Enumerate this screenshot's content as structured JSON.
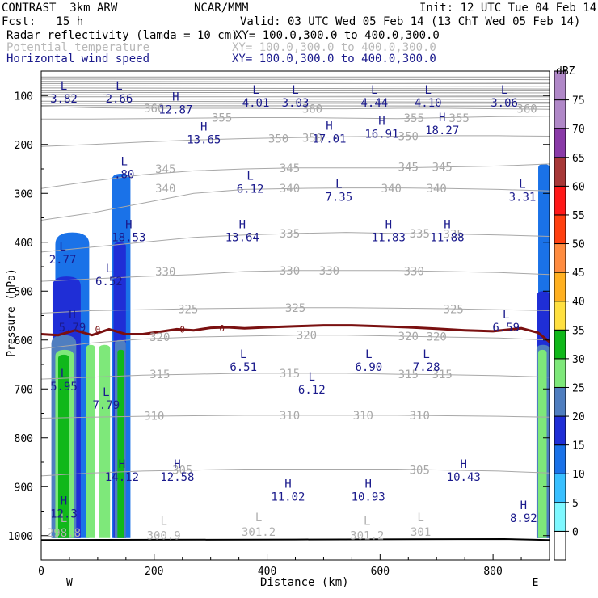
{
  "header": {
    "title_left": "CONTRAST  3km ARW",
    "title_center": "NCAR/MMM",
    "init": "Init: 12 UTC Tue 04 Feb 14",
    "fcst": "Fcst:   15 h",
    "valid": "Valid: 03 UTC Wed 05 Feb 14 (13 ChT Wed 05 Feb 14)",
    "fields": [
      {
        "name": "Radar reflectivity (lamda = 10 cm)",
        "xy": "XY= 100.0,300.0 to 400.0,300.0"
      },
      {
        "name": "Potential temperature",
        "xy": "XY= 100.0,300.0 to 400.0,300.0"
      },
      {
        "name": "Horizontal wind speed",
        "xy": "XY= 100.0,300.0 to 400.0,300.0"
      }
    ]
  },
  "colorbar": {
    "unit": "dBZ",
    "levels": [
      0,
      5,
      10,
      15,
      20,
      25,
      30,
      35,
      40,
      45,
      50,
      55,
      60,
      65,
      70,
      75
    ],
    "colors": [
      "#ffffff",
      "#7ff8ff",
      "#39c0ff",
      "#1a72e8",
      "#1f2ed6",
      "#4f7ec0",
      "#7ee87a",
      "#10b81a",
      "#ffe040",
      "#ffb020",
      "#ff8c40",
      "#ff4010",
      "#ff1818",
      "#a83838",
      "#8a3aa8",
      "#b088c8"
    ]
  },
  "chart_data": {
    "type": "contour-cross-section",
    "xlabel": "Distance (km)",
    "ylabel": "Pressure (hPa)",
    "xlim": [
      0,
      900
    ],
    "ylim": [
      1050,
      50
    ],
    "xticks": [
      0,
      200,
      400,
      600,
      800
    ],
    "yticks": [
      100,
      200,
      300,
      400,
      500,
      600,
      700,
      800,
      900,
      1000
    ],
    "endpoints": {
      "left": "W",
      "right": "E"
    },
    "theta_contours": [
      {
        "label": "360",
        "p": [
          122,
          125,
          126,
          126,
          126,
          127,
          127,
          126,
          126,
          127,
          128
        ],
        "label_positions": [
          [
            200,
            126
          ],
          [
            480,
            127
          ],
          [
            860,
            127
          ]
        ]
      },
      {
        "label": "355",
        "p": [
          148,
          148,
          147,
          146,
          145,
          145,
          146,
          147,
          145,
          143,
          142
        ],
        "label_positions": [
          [
            320,
            145
          ],
          [
            660,
            146
          ],
          [
            740,
            146
          ]
        ]
      },
      {
        "label": "350",
        "p": [
          204,
          200,
          195,
          191,
          188,
          186,
          184,
          183,
          182,
          182,
          183
        ],
        "label_positions": [
          [
            420,
            188
          ],
          [
            480,
            186
          ],
          [
            650,
            183
          ]
        ]
      },
      {
        "label": "345",
        "p": [
          290,
          275,
          262,
          254,
          250,
          248,
          248,
          248,
          246,
          244,
          240
        ],
        "label_positions": [
          [
            220,
            250
          ],
          [
            440,
            248
          ],
          [
            650,
            246
          ],
          [
            710,
            246
          ]
        ]
      },
      {
        "label": "340",
        "p": [
          355,
          340,
          320,
          300,
          292,
          290,
          289,
          289,
          290,
          292,
          295
        ],
        "label_positions": [
          [
            220,
            290
          ],
          [
            440,
            290
          ],
          [
            620,
            290
          ],
          [
            700,
            290
          ]
        ]
      },
      {
        "label": "335",
        "p": [
          420,
          410,
          400,
          390,
          385,
          382,
          380,
          382,
          383,
          385,
          388
        ],
        "label_positions": [
          [
            440,
            382
          ],
          [
            670,
            382
          ],
          [
            730,
            383
          ]
        ]
      },
      {
        "label": "330",
        "p": [
          480,
          475,
          470,
          466,
          460,
          458,
          458,
          458,
          460,
          462,
          466
        ],
        "label_positions": [
          [
            220,
            460
          ],
          [
            440,
            458
          ],
          [
            510,
            458
          ],
          [
            660,
            459
          ]
        ]
      },
      {
        "label": "325",
        "p": [
          545,
          540,
          538,
          536,
          535,
          534,
          534,
          535,
          536,
          538,
          540
        ],
        "label_positions": [
          [
            260,
            537
          ],
          [
            450,
            534
          ],
          [
            730,
            537
          ]
        ]
      },
      {
        "label": "320",
        "p": [
          618,
          606,
          598,
          594,
          592,
          590,
          590,
          592,
          594,
          596,
          600
        ],
        "label_positions": [
          [
            210,
            594
          ],
          [
            470,
            590
          ],
          [
            650,
            592
          ],
          [
            700,
            593
          ]
        ]
      },
      {
        "label": "315",
        "p": [
          680,
          676,
          672,
          670,
          668,
          668,
          668,
          670,
          671,
          673,
          676
        ],
        "label_positions": [
          [
            210,
            670
          ],
          [
            440,
            668
          ],
          [
            650,
            670
          ],
          [
            710,
            670
          ]
        ]
      },
      {
        "label": "310",
        "p": [
          760,
          758,
          756,
          755,
          754,
          754,
          754,
          754,
          755,
          756,
          758
        ],
        "label_positions": [
          [
            200,
            755
          ],
          [
            440,
            754
          ],
          [
            570,
            754
          ],
          [
            670,
            754
          ]
        ]
      },
      {
        "label": "305",
        "p": [
          878,
          872,
          868,
          866,
          864,
          864,
          864,
          864,
          866,
          868,
          872
        ],
        "label_positions": [
          [
            250,
            866
          ],
          [
            670,
            866
          ]
        ]
      }
    ],
    "freezing_line": {
      "label": "0",
      "x": [
        0,
        30,
        60,
        90,
        120,
        150,
        180,
        210,
        240,
        270,
        300,
        330,
        360,
        400,
        450,
        500,
        550,
        600,
        650,
        700,
        750,
        800,
        850,
        880,
        900
      ],
      "p": [
        588,
        590,
        580,
        590,
        578,
        588,
        588,
        583,
        578,
        580,
        575,
        574,
        576,
        574,
        572,
        570,
        570,
        572,
        574,
        577,
        580,
        582,
        576,
        585,
        604
      ]
    },
    "surface": {
      "x": [
        0,
        450,
        820,
        900
      ],
      "p": [
        1009,
        1008,
        1007,
        1009
      ]
    },
    "reflectivity_regions": [
      {
        "x0": 25,
        "x1": 85,
        "ptop": 380,
        "dbz": 15
      },
      {
        "x0": 20,
        "x1": 70,
        "ptop": 470,
        "dbz": 20
      },
      {
        "x0": 18,
        "x1": 62,
        "ptop": 590,
        "dbz": 25
      },
      {
        "x0": 25,
        "x1": 58,
        "ptop": 620,
        "dbz": 30
      },
      {
        "x0": 30,
        "x1": 50,
        "ptop": 630,
        "dbz": 35
      },
      {
        "x0": 80,
        "x1": 95,
        "ptop": 610,
        "dbz": 30
      },
      {
        "x0": 102,
        "x1": 122,
        "ptop": 610,
        "dbz": 30
      },
      {
        "x0": 125,
        "x1": 158,
        "ptop": 260,
        "dbz": 15
      },
      {
        "x0": 128,
        "x1": 150,
        "ptop": 400,
        "dbz": 20
      },
      {
        "x0": 130,
        "x1": 150,
        "ptop": 600,
        "dbz": 25
      },
      {
        "x0": 135,
        "x1": 147,
        "ptop": 620,
        "dbz": 35
      },
      {
        "x0": 880,
        "x1": 900,
        "ptop": 240,
        "dbz": 15
      },
      {
        "x0": 878,
        "x1": 900,
        "ptop": 500,
        "dbz": 20
      },
      {
        "x0": 877,
        "x1": 900,
        "ptop": 610,
        "dbz": 25
      },
      {
        "x0": 880,
        "x1": 895,
        "ptop": 620,
        "dbz": 30
      }
    ],
    "wind_labels": [
      {
        "kind": "L",
        "value": "3.82",
        "x": 40,
        "p": 108
      },
      {
        "kind": "L",
        "value": "2.66",
        "x": 138,
        "p": 108
      },
      {
        "kind": "H",
        "value": "12.87",
        "x": 238,
        "p": 130
      },
      {
        "kind": "L",
        "value": "4.01",
        "x": 380,
        "p": 116
      },
      {
        "kind": "L",
        "value": "3.03",
        "x": 450,
        "p": 116
      },
      {
        "kind": "L",
        "value": "4.44",
        "x": 590,
        "p": 116
      },
      {
        "kind": "L",
        "value": "4.10",
        "x": 685,
        "p": 116
      },
      {
        "kind": "L",
        "value": "3.06",
        "x": 820,
        "p": 116
      },
      {
        "kind": "H",
        "value": "13.65",
        "x": 288,
        "p": 191
      },
      {
        "kind": "H",
        "value": "17.01",
        "x": 510,
        "p": 190
      },
      {
        "kind": "H",
        "value": "16.91",
        "x": 603,
        "p": 180
      },
      {
        "kind": "H",
        "value": "18.27",
        "x": 710,
        "p": 172
      },
      {
        "kind": "L",
        "value": ".80",
        "x": 147,
        "p": 262
      },
      {
        "kind": "L",
        "value": "6.12",
        "x": 370,
        "p": 292
      },
      {
        "kind": "L",
        "value": "7.35",
        "x": 527,
        "p": 309
      },
      {
        "kind": "L",
        "value": "3.31",
        "x": 852,
        "p": 309
      },
      {
        "kind": "H",
        "value": "18.53",
        "x": 155,
        "p": 391
      },
      {
        "kind": "H",
        "value": "13.64",
        "x": 356,
        "p": 391
      },
      {
        "kind": "H",
        "value": "11.83",
        "x": 615,
        "p": 391
      },
      {
        "kind": "H",
        "value": "11.88",
        "x": 719,
        "p": 391
      },
      {
        "kind": "L",
        "value": "2.77",
        "x": 38,
        "p": 437
      },
      {
        "kind": "L",
        "value": "6.52",
        "x": 120,
        "p": 481
      },
      {
        "kind": "H",
        "value": "5.79",
        "x": 55,
        "p": 576
      },
      {
        "kind": "L",
        "value": "6.59",
        "x": 823,
        "p": 576
      },
      {
        "kind": "L",
        "value": "6.51",
        "x": 358,
        "p": 657
      },
      {
        "kind": "L",
        "value": "6.90",
        "x": 580,
        "p": 657
      },
      {
        "kind": "L",
        "value": "7.28",
        "x": 682,
        "p": 657
      },
      {
        "kind": "L",
        "value": "6.12",
        "x": 479,
        "p": 703
      },
      {
        "kind": "L",
        "value": "5.95",
        "x": 40,
        "p": 696
      },
      {
        "kind": "L",
        "value": "7.79",
        "x": 115,
        "p": 734
      },
      {
        "kind": "H",
        "value": "14.12",
        "x": 143,
        "p": 881
      },
      {
        "kind": "H",
        "value": "12.58",
        "x": 241,
        "p": 881
      },
      {
        "kind": "H",
        "value": "11.02",
        "x": 437,
        "p": 922
      },
      {
        "kind": "H",
        "value": "10.93",
        "x": 579,
        "p": 922
      },
      {
        "kind": "H",
        "value": "10.43",
        "x": 748,
        "p": 881
      },
      {
        "kind": "H",
        "value": "12.3",
        "x": 40,
        "p": 957
      },
      {
        "kind": "H",
        "value": "8.92",
        "x": 854,
        "p": 966
      }
    ],
    "theta_extremes": [
      {
        "kind": "L",
        "value": "300.9",
        "x": 217,
        "p": 1008
      },
      {
        "kind": "L",
        "value": "301.2",
        "x": 385,
        "p": 1000
      },
      {
        "kind": "L",
        "value": "301.2",
        "x": 577,
        "p": 1008
      },
      {
        "kind": "L",
        "value": "301",
        "x": 672,
        "p": 1000
      },
      {
        "kind": "L",
        "value": "298.8",
        "x": 40,
        "p": 1002
      }
    ]
  }
}
